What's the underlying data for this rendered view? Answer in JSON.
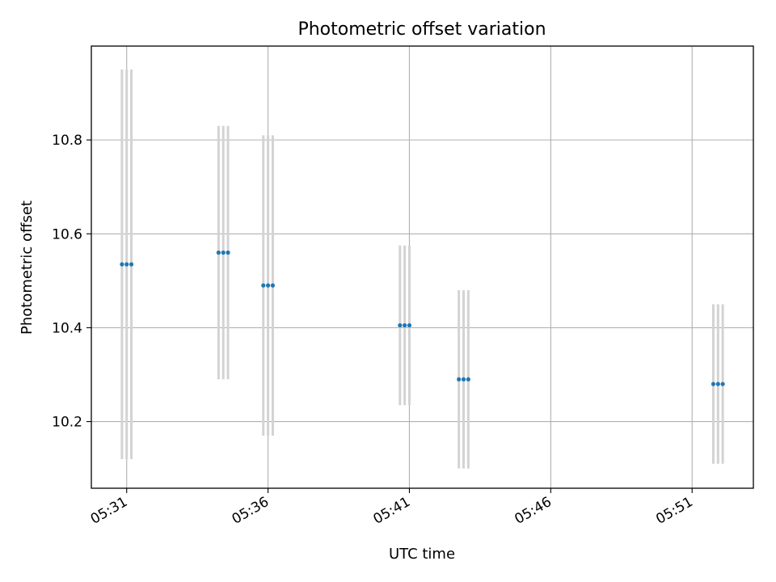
{
  "chart_data": {
    "type": "scatter",
    "title": "Photometric offset variation",
    "xlabel": "UTC time",
    "ylabel": "Photometric offset",
    "x_ticks": [
      "05:31",
      "05:36",
      "05:41",
      "05:46",
      "05:51"
    ],
    "x_tick_values": [
      "05:31",
      "05:36",
      "05:41",
      "05:46",
      "05:51"
    ],
    "xlim": [
      "05:29:45",
      "05:53:10"
    ],
    "y_ticks": [
      "10.2",
      "10.4",
      "10.6",
      "10.8"
    ],
    "y_tick_values": [
      10.2,
      10.4,
      10.6,
      10.8
    ],
    "ylim": [
      10.058,
      11.0
    ],
    "grid": true,
    "point_color": "#1f77b4",
    "errorbar_color": "#d3d3d3",
    "series": [
      {
        "points": [
          {
            "x": "05:30:50",
            "y": 10.535,
            "err_low": 10.12,
            "err_high": 10.95
          },
          {
            "x": "05:31:00",
            "y": 10.535,
            "err_low": 10.12,
            "err_high": 10.95
          },
          {
            "x": "05:31:10",
            "y": 10.535,
            "err_low": 10.12,
            "err_high": 10.95
          },
          {
            "x": "05:34:15",
            "y": 10.56,
            "err_low": 10.29,
            "err_high": 10.83
          },
          {
            "x": "05:34:25",
            "y": 10.56,
            "err_low": 10.29,
            "err_high": 10.83
          },
          {
            "x": "05:34:35",
            "y": 10.56,
            "err_low": 10.29,
            "err_high": 10.83
          },
          {
            "x": "05:35:50",
            "y": 10.49,
            "err_low": 10.17,
            "err_high": 10.81
          },
          {
            "x": "05:36:00",
            "y": 10.49,
            "err_low": 10.17,
            "err_high": 10.81
          },
          {
            "x": "05:36:10",
            "y": 10.49,
            "err_low": 10.17,
            "err_high": 10.81
          },
          {
            "x": "05:40:40",
            "y": 10.405,
            "err_low": 10.235,
            "err_high": 10.575
          },
          {
            "x": "05:40:50",
            "y": 10.405,
            "err_low": 10.235,
            "err_high": 10.575
          },
          {
            "x": "05:41:00",
            "y": 10.405,
            "err_low": 10.235,
            "err_high": 10.575
          },
          {
            "x": "05:42:45",
            "y": 10.29,
            "err_low": 10.1,
            "err_high": 10.48
          },
          {
            "x": "05:42:55",
            "y": 10.29,
            "err_low": 10.1,
            "err_high": 10.48
          },
          {
            "x": "05:43:05",
            "y": 10.29,
            "err_low": 10.1,
            "err_high": 10.48
          },
          {
            "x": "05:51:45",
            "y": 10.28,
            "err_low": 10.11,
            "err_high": 10.45
          },
          {
            "x": "05:51:55",
            "y": 10.28,
            "err_low": 10.11,
            "err_high": 10.45
          },
          {
            "x": "05:52:05",
            "y": 10.28,
            "err_low": 10.11,
            "err_high": 10.45
          }
        ]
      }
    ]
  }
}
